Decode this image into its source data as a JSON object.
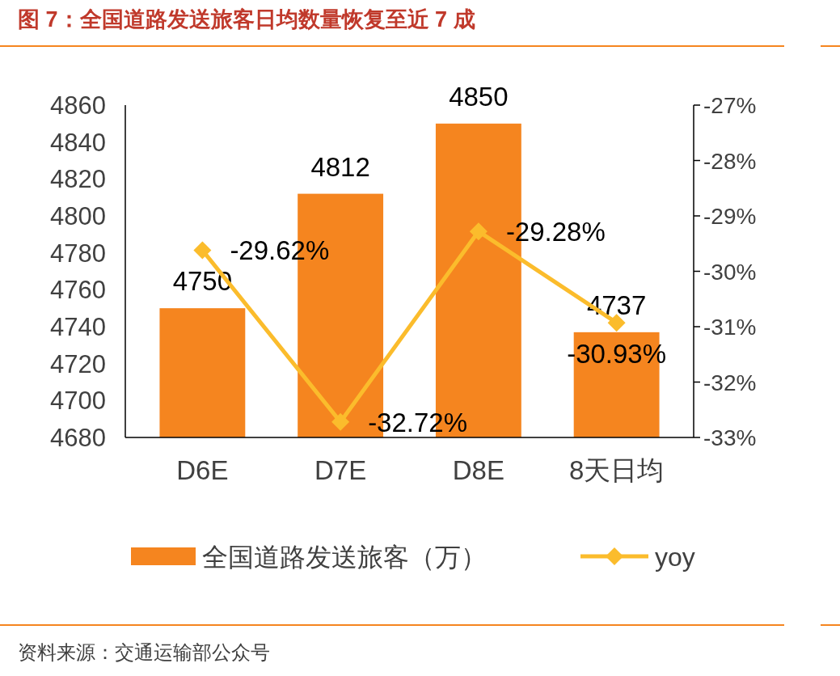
{
  "chart_data": {
    "type": "bar",
    "title": "图 7：全国道路发送旅客日均数量恢复至近 7 成",
    "categories": [
      "D6E",
      "D7E",
      "D8E",
      "8天日均"
    ],
    "series": [
      {
        "name": "全国道路发送旅客（万）",
        "color": "#f5851f",
        "values": [
          4750,
          4812,
          4850,
          4737
        ],
        "value_labels": [
          "4750",
          "4812",
          "4850",
          "4737"
        ]
      },
      {
        "name": "yoy",
        "type": "line",
        "axis": "y2",
        "color": "#fbbc2c",
        "values": [
          -29.62,
          -32.72,
          -29.28,
          -30.93
        ],
        "value_labels": [
          "-29.62%",
          "-32.72%",
          "-29.28%",
          "-30.93%"
        ]
      }
    ],
    "ylim": [
      4680,
      4860
    ],
    "yticks": [
      4680,
      4700,
      4720,
      4740,
      4760,
      4780,
      4800,
      4820,
      4840,
      4860
    ],
    "y2lim": [
      -33,
      -27
    ],
    "y2ticks": [
      {
        "value": -33,
        "label": "-33%"
      },
      {
        "value": -32,
        "label": "-32%"
      },
      {
        "value": -31,
        "label": "-31%"
      },
      {
        "value": -30,
        "label": "-30%"
      },
      {
        "value": -29,
        "label": "-29%"
      },
      {
        "value": -28,
        "label": "-28%"
      },
      {
        "value": -27,
        "label": "-27%"
      }
    ],
    "marker": "diamond",
    "legend": "bottom",
    "grid": false,
    "annotations": [
      "资料来源：交通运输部公众号"
    ]
  }
}
